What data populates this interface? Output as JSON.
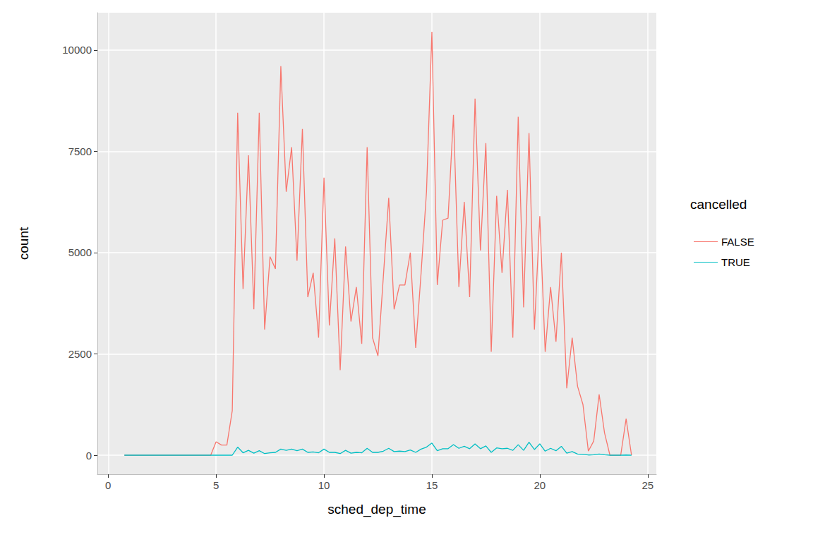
{
  "chart_data": {
    "type": "line",
    "x_label": "sched_dep_time",
    "y_label": "count",
    "legend_title": "cancelled",
    "legend": "right",
    "grid": true,
    "xlim": [
      -0.5,
      25.4
    ],
    "xticks": [
      0,
      5,
      10,
      15,
      20,
      25
    ],
    "ylim": [
      -470,
      10920
    ],
    "yticks": [
      0,
      2500,
      5000,
      7500,
      10000
    ],
    "x": [
      0.75,
      1,
      1.25,
      1.5,
      1.75,
      2,
      2.25,
      2.5,
      2.75,
      3,
      3.25,
      3.5,
      3.75,
      4,
      4.25,
      4.5,
      4.75,
      5,
      5.25,
      5.5,
      5.75,
      6,
      6.25,
      6.5,
      6.75,
      7,
      7.25,
      7.5,
      7.75,
      8,
      8.25,
      8.5,
      8.75,
      9,
      9.25,
      9.5,
      9.75,
      10,
      10.25,
      10.5,
      10.75,
      11,
      11.25,
      11.5,
      11.75,
      12,
      12.25,
      12.5,
      12.75,
      13,
      13.25,
      13.5,
      13.75,
      14,
      14.25,
      14.5,
      14.75,
      15,
      15.25,
      15.5,
      15.75,
      16,
      16.25,
      16.5,
      16.75,
      17,
      17.25,
      17.5,
      17.75,
      18,
      18.25,
      18.5,
      18.75,
      19,
      19.25,
      19.5,
      19.75,
      20,
      20.25,
      20.5,
      20.75,
      21,
      21.25,
      21.5,
      21.75,
      22,
      22.25,
      22.5,
      22.75,
      23,
      23.25,
      23.5,
      23.75,
      24,
      24.25
    ],
    "series": [
      {
        "name": "FALSE",
        "color": "#F8766D",
        "values": [
          0,
          0,
          0,
          0,
          0,
          0,
          0,
          0,
          0,
          0,
          0,
          0,
          0,
          0,
          0,
          0,
          0,
          330,
          250,
          250,
          1100,
          8450,
          4100,
          7400,
          3600,
          8450,
          3100,
          4900,
          4600,
          9600,
          6500,
          7600,
          4800,
          8050,
          3900,
          4500,
          2900,
          6850,
          3200,
          5350,
          2100,
          5150,
          3300,
          4150,
          2750,
          7600,
          2900,
          2450,
          4400,
          6350,
          3600,
          4200,
          4200,
          5000,
          2650,
          4500,
          6500,
          10450,
          4200,
          5800,
          5850,
          8400,
          4150,
          6250,
          3900,
          8800,
          5050,
          7700,
          2550,
          6400,
          4500,
          6550,
          2900,
          8350,
          3650,
          7950,
          3100,
          5900,
          2550,
          4150,
          2800,
          5000,
          1650,
          2900,
          1700,
          1250,
          100,
          350,
          1500,
          550,
          0,
          0,
          0,
          900,
          0
        ]
      },
      {
        "name": "TRUE",
        "color": "#00BFC4",
        "values": [
          0,
          0,
          0,
          0,
          0,
          0,
          0,
          0,
          0,
          0,
          0,
          0,
          0,
          0,
          0,
          0,
          0,
          0,
          0,
          0,
          0,
          200,
          60,
          120,
          50,
          110,
          40,
          60,
          70,
          150,
          120,
          150,
          110,
          150,
          70,
          80,
          60,
          150,
          70,
          70,
          40,
          120,
          50,
          70,
          60,
          170,
          70,
          70,
          100,
          170,
          90,
          100,
          90,
          130,
          70,
          150,
          200,
          300,
          110,
          160,
          160,
          260,
          170,
          220,
          160,
          280,
          160,
          230,
          70,
          180,
          160,
          170,
          120,
          260,
          120,
          320,
          140,
          280,
          100,
          170,
          110,
          220,
          50,
          90,
          30,
          20,
          5,
          10,
          30,
          10,
          0,
          0,
          0,
          5,
          0
        ]
      }
    ]
  }
}
